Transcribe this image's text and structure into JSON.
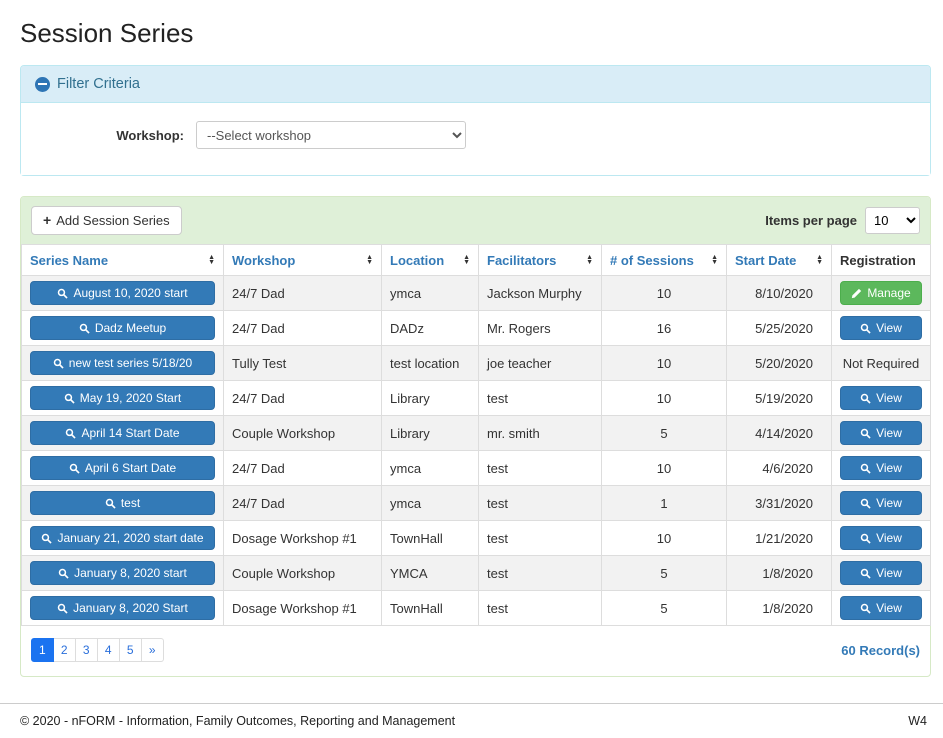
{
  "page": {
    "title": "Session Series"
  },
  "filter": {
    "title": "Filter Criteria",
    "collapse_icon": "minus-circle-icon",
    "workshop_label": "Workshop:",
    "workshop_selected": "--Select workshop"
  },
  "toolbar": {
    "add_button_label": "Add Session Series",
    "items_per_page_label": "Items per page",
    "items_per_page_value": "10"
  },
  "table": {
    "columns": [
      {
        "label": "Series Name",
        "sortable": true
      },
      {
        "label": "Workshop",
        "sortable": true
      },
      {
        "label": "Location",
        "sortable": true
      },
      {
        "label": "Facilitators",
        "sortable": true
      },
      {
        "label": "# of Sessions",
        "sortable": true
      },
      {
        "label": "Start Date",
        "sortable": true
      },
      {
        "label": "Registration",
        "sortable": false
      }
    ],
    "rows": [
      {
        "series_name": "August 10, 2020 start",
        "workshop": "24/7 Dad",
        "location": "ymca",
        "facilitators": "Jackson Murphy",
        "sessions": "10",
        "start_date": "8/10/2020",
        "registration_type": "manage",
        "registration_label": "Manage"
      },
      {
        "series_name": "Dadz Meetup",
        "workshop": "24/7 Dad",
        "location": "DADz",
        "facilitators": "Mr. Rogers",
        "sessions": "16",
        "start_date": "5/25/2020",
        "registration_type": "view",
        "registration_label": "View"
      },
      {
        "series_name": "new test series 5/18/20",
        "workshop": "Tully Test",
        "location": "test location",
        "facilitators": "joe teacher",
        "sessions": "10",
        "start_date": "5/20/2020",
        "registration_type": "none",
        "registration_label": "Not Required"
      },
      {
        "series_name": "May 19, 2020 Start",
        "workshop": "24/7 Dad",
        "location": "Library",
        "facilitators": "test",
        "sessions": "10",
        "start_date": "5/19/2020",
        "registration_type": "view",
        "registration_label": "View"
      },
      {
        "series_name": "April 14 Start Date",
        "workshop": "Couple Workshop",
        "location": "Library",
        "facilitators": "mr. smith",
        "sessions": "5",
        "start_date": "4/14/2020",
        "registration_type": "view",
        "registration_label": "View"
      },
      {
        "series_name": "April 6 Start Date",
        "workshop": "24/7 Dad",
        "location": "ymca",
        "facilitators": "test",
        "sessions": "10",
        "start_date": "4/6/2020",
        "registration_type": "view",
        "registration_label": "View"
      },
      {
        "series_name": "test",
        "workshop": "24/7 Dad",
        "location": "ymca",
        "facilitators": "test",
        "sessions": "1",
        "start_date": "3/31/2020",
        "registration_type": "view",
        "registration_label": "View"
      },
      {
        "series_name": "January 21, 2020 start date",
        "workshop": "Dosage Workshop #1",
        "location": "TownHall",
        "facilitators": "test",
        "sessions": "10",
        "start_date": "1/21/2020",
        "registration_type": "view",
        "registration_label": "View"
      },
      {
        "series_name": "January 8, 2020 start",
        "workshop": "Couple Workshop",
        "location": "YMCA",
        "facilitators": "test",
        "sessions": "5",
        "start_date": "1/8/2020",
        "registration_type": "view",
        "registration_label": "View"
      },
      {
        "series_name": "January 8, 2020 Start",
        "workshop": "Dosage Workshop #1",
        "location": "TownHall",
        "facilitators": "test",
        "sessions": "5",
        "start_date": "1/8/2020",
        "registration_type": "view",
        "registration_label": "View"
      }
    ]
  },
  "pagination": {
    "pages": [
      "1",
      "2",
      "3",
      "4",
      "5",
      "»"
    ],
    "active": "1",
    "record_count": "60 Record(s)"
  },
  "footer": {
    "copyright": "© 2020 - nFORM - Information, Family Outcomes, Reporting and Management",
    "version": "W4"
  },
  "icons": {
    "series_row": "magnifier-icon",
    "view": "magnifier-icon",
    "manage": "pencil-icon",
    "add": "plus-icon",
    "sort": "sort-arrows-icon"
  },
  "colors": {
    "filter_header_bg": "#d9edf7",
    "filter_header_text": "#31708f",
    "toolbar_bg": "#dff0d8",
    "link_blue": "#337ab7",
    "button_blue": "#337ab7",
    "button_green": "#5cb85c",
    "active_page_bg": "#1b73f0",
    "stripe_bg": "#f2f2f2"
  }
}
